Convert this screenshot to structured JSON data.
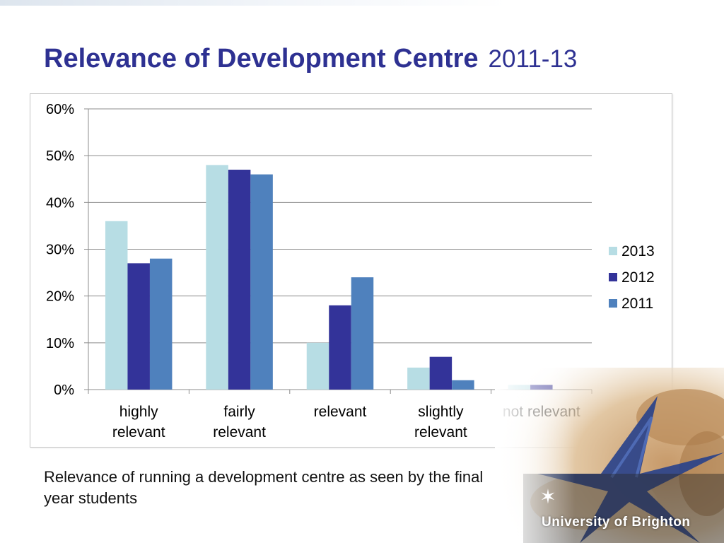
{
  "slide": {
    "title_main": "Relevance of Development Centre",
    "title_years": "2011-13",
    "caption": "Relevance of running a development centre as seen by the final year students",
    "logo_text": "University of Brighton"
  },
  "chart_data": {
    "type": "bar",
    "categories": [
      [
        "highly",
        "relevant"
      ],
      [
        "fairly",
        "relevant"
      ],
      [
        "relevant"
      ],
      [
        "slightly",
        "relevant"
      ],
      [
        "not relevant"
      ]
    ],
    "series": [
      {
        "name": "2013",
        "color": "#b7dde4",
        "values": [
          36,
          48,
          10,
          4.7,
          1
        ]
      },
      {
        "name": "2012",
        "color": "#333399",
        "values": [
          27,
          47,
          18,
          7,
          1
        ]
      },
      {
        "name": "2011",
        "color": "#4f81bd",
        "values": [
          28,
          46,
          24,
          2,
          0
        ]
      }
    ],
    "yticks": [
      "0%",
      "10%",
      "20%",
      "30%",
      "40%",
      "50%",
      "60%"
    ],
    "ylim": [
      0,
      60
    ],
    "ylabel": "",
    "xlabel": "",
    "grid": true,
    "legend": "right"
  }
}
